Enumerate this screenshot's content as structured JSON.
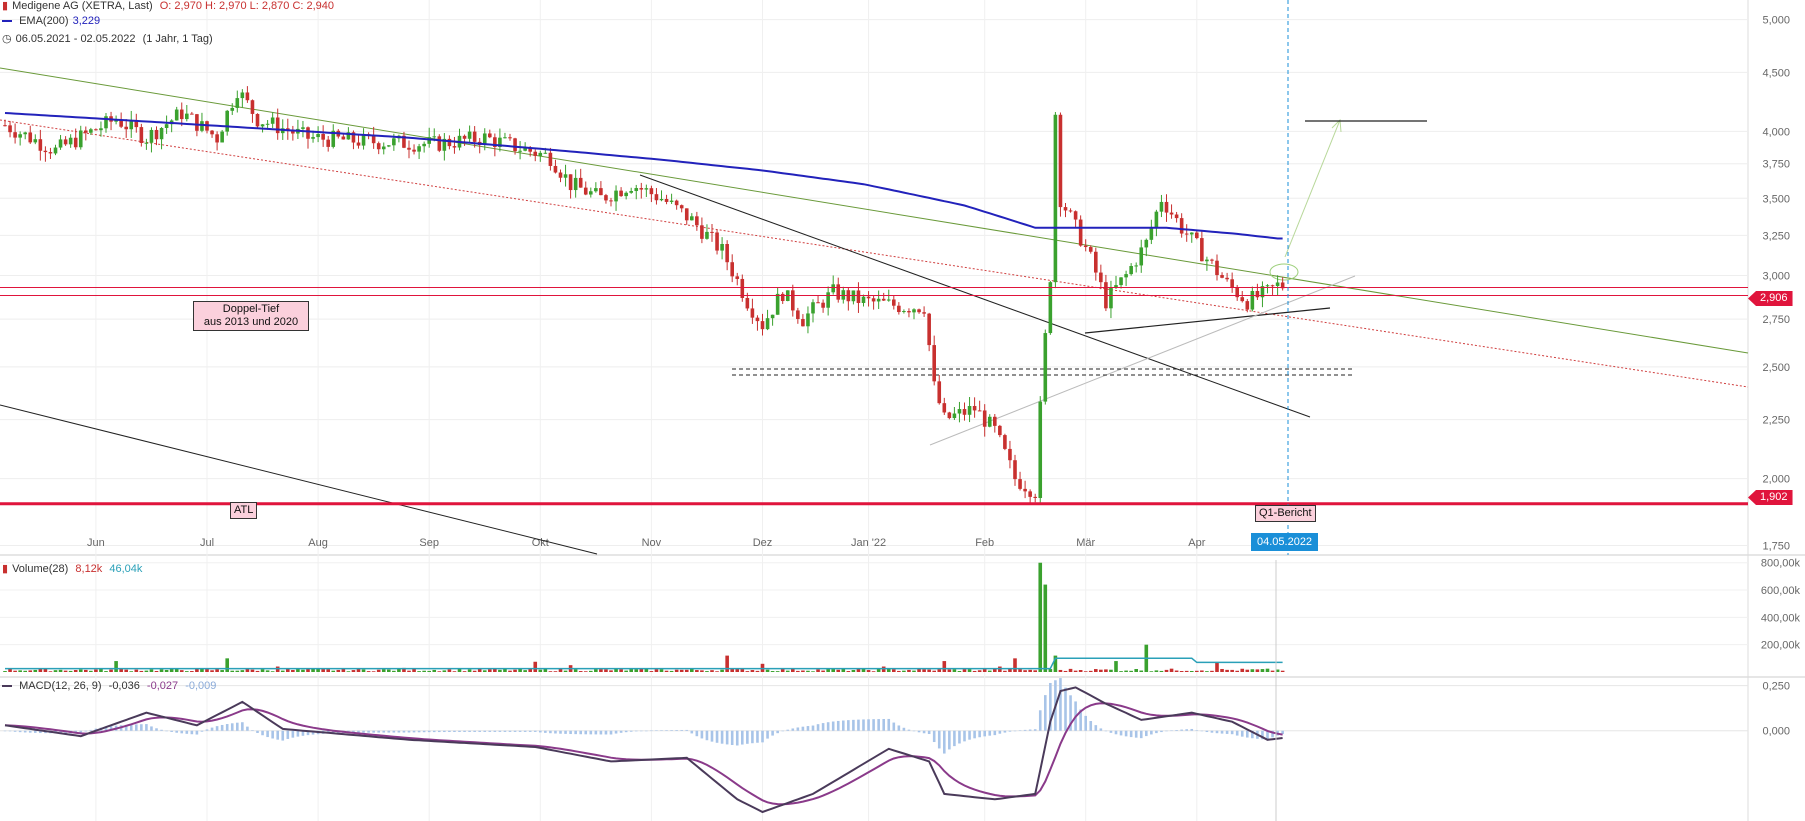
{
  "header": {
    "title": "Medigene AG (XETRA, Last)",
    "ohlc": "O: 2,970  H: 2,970  L: 2,870  C: 2,940",
    "ema_label": "EMA(200)",
    "ema_value": "3,229",
    "range": "06.05.2021 - 02.05.2022",
    "period": "(1 Jahr, 1 Tag)"
  },
  "volume_legend": {
    "label": "Volume(28)",
    "v1": "8,12k",
    "v2": "46,04k"
  },
  "macd_legend": {
    "label": "MACD(12, 26, 9)",
    "v1": "-0,036",
    "v2": "-0,027",
    "v3": "-0,009"
  },
  "annotations": {
    "doppel_tief_line1": "Doppel-Tief",
    "doppel_tief_line2": "aus 2013 und 2020",
    "atl": "ATL",
    "q1": "Q1-Bericht",
    "date_marker": "04.05.2022",
    "price_current": "2,906",
    "price_atl": "1,902"
  },
  "colors": {
    "up": "#3aa12e",
    "down": "#c8302f",
    "ema": "#2222bb",
    "green_trend": "#6a9a3a",
    "red_line": "#e0143c",
    "macd": "#4a3a5a",
    "signal": "#8a3a8a",
    "hist": "#a8c4e8",
    "vol_ma": "#2aa0b8",
    "marker": "#1a8fd8"
  },
  "chart_data": {
    "type": "candlestick",
    "y_scale": "log",
    "ylim": [
      1.7,
      5.2
    ],
    "y_ticks": [
      "5,000",
      "4,500",
      "4,000",
      "3,750",
      "3,500",
      "3,250",
      "3,000",
      "2,750",
      "2,500",
      "2,250",
      "2,000",
      "1,750"
    ],
    "y_tick_values": [
      5.0,
      4.5,
      4.0,
      3.75,
      3.5,
      3.25,
      3.0,
      2.75,
      2.5,
      2.25,
      2.0,
      1.75
    ],
    "x_labels": [
      "Jun",
      "Jul",
      "Aug",
      "Sep",
      "Okt",
      "Nov",
      "Dez",
      "Jan '22",
      "Feb",
      "Mär",
      "Apr"
    ],
    "x_label_index": [
      18,
      40,
      62,
      84,
      106,
      128,
      150,
      171,
      194,
      214,
      236
    ],
    "price_anchors": [
      [
        0,
        4.05
      ],
      [
        10,
        3.85
      ],
      [
        22,
        4.1
      ],
      [
        28,
        3.95
      ],
      [
        35,
        4.15
      ],
      [
        42,
        3.95
      ],
      [
        46,
        4.35
      ],
      [
        50,
        4.1
      ],
      [
        60,
        3.95
      ],
      [
        72,
        3.92
      ],
      [
        85,
        3.9
      ],
      [
        95,
        3.95
      ],
      [
        108,
        3.8
      ],
      [
        112,
        3.6
      ],
      [
        118,
        3.5
      ],
      [
        124,
        3.6
      ],
      [
        130,
        3.5
      ],
      [
        136,
        3.35
      ],
      [
        142,
        3.15
      ],
      [
        147,
        2.85
      ],
      [
        150,
        2.72
      ],
      [
        154,
        2.9
      ],
      [
        158,
        2.75
      ],
      [
        164,
        2.9
      ],
      [
        170,
        2.85
      ],
      [
        178,
        2.82
      ],
      [
        182,
        2.82
      ],
      [
        184,
        2.4
      ],
      [
        186,
        2.25
      ],
      [
        192,
        2.3
      ],
      [
        196,
        2.2
      ],
      [
        200,
        2.0
      ],
      [
        204,
        1.95
      ],
      [
        207,
        3.0
      ],
      [
        208,
        4.15
      ],
      [
        209,
        3.5
      ],
      [
        212,
        3.3
      ],
      [
        215,
        3.1
      ],
      [
        218,
        2.85
      ],
      [
        222,
        3.0
      ],
      [
        226,
        3.2
      ],
      [
        229,
        3.5
      ],
      [
        233,
        3.3
      ],
      [
        238,
        3.1
      ],
      [
        242,
        2.95
      ],
      [
        246,
        2.85
      ],
      [
        250,
        2.9
      ],
      [
        252,
        2.94
      ]
    ],
    "ema200_anchors": [
      [
        0,
        4.15
      ],
      [
        40,
        4.05
      ],
      [
        80,
        3.95
      ],
      [
        110,
        3.85
      ],
      [
        130,
        3.78
      ],
      [
        150,
        3.7
      ],
      [
        170,
        3.6
      ],
      [
        190,
        3.45
      ],
      [
        204,
        3.3
      ],
      [
        214,
        3.3
      ],
      [
        230,
        3.3
      ],
      [
        244,
        3.26
      ],
      [
        252,
        3.23
      ]
    ],
    "volume_ylim": [
      0,
      820
    ],
    "volume_ticks": [
      "800,00k",
      "600,00k",
      "400,00k",
      "200,00k"
    ],
    "volume_tick_values": [
      800,
      600,
      400,
      200
    ],
    "volume_spikes": [
      [
        22,
        80
      ],
      [
        44,
        100
      ],
      [
        54,
        40
      ],
      [
        79,
        30
      ],
      [
        105,
        75
      ],
      [
        112,
        50
      ],
      [
        143,
        120
      ],
      [
        150,
        60
      ],
      [
        174,
        40
      ],
      [
        186,
        80
      ],
      [
        197,
        40
      ],
      [
        200,
        100
      ],
      [
        205,
        800
      ],
      [
        206,
        640
      ],
      [
        208,
        120
      ],
      [
        220,
        80
      ],
      [
        226,
        200
      ],
      [
        240,
        70
      ]
    ],
    "macd_ylim": [
      -0.5,
      0.27
    ],
    "macd_ticks": [
      "0,250",
      "0,000"
    ],
    "macd_tick_values": [
      0.25,
      0.0
    ],
    "macd_anchors": [
      [
        0,
        0.03
      ],
      [
        15,
        -0.03
      ],
      [
        28,
        0.1
      ],
      [
        38,
        0.03
      ],
      [
        47,
        0.16
      ],
      [
        55,
        0.01
      ],
      [
        80,
        -0.05
      ],
      [
        105,
        -0.09
      ],
      [
        120,
        -0.17
      ],
      [
        135,
        -0.15
      ],
      [
        145,
        -0.38
      ],
      [
        150,
        -0.45
      ],
      [
        160,
        -0.35
      ],
      [
        175,
        -0.1
      ],
      [
        183,
        -0.17
      ],
      [
        186,
        -0.35
      ],
      [
        196,
        -0.38
      ],
      [
        204,
        -0.35
      ],
      [
        207,
        0.05
      ],
      [
        209,
        0.22
      ],
      [
        212,
        0.24
      ],
      [
        218,
        0.15
      ],
      [
        225,
        0.06
      ],
      [
        235,
        0.1
      ],
      [
        243,
        0.05
      ],
      [
        250,
        -0.05
      ],
      [
        253,
        -0.04
      ]
    ],
    "annotation_prices": {
      "doppel_tief": 2.906,
      "atl": 1.902
    },
    "last_index": 253
  }
}
